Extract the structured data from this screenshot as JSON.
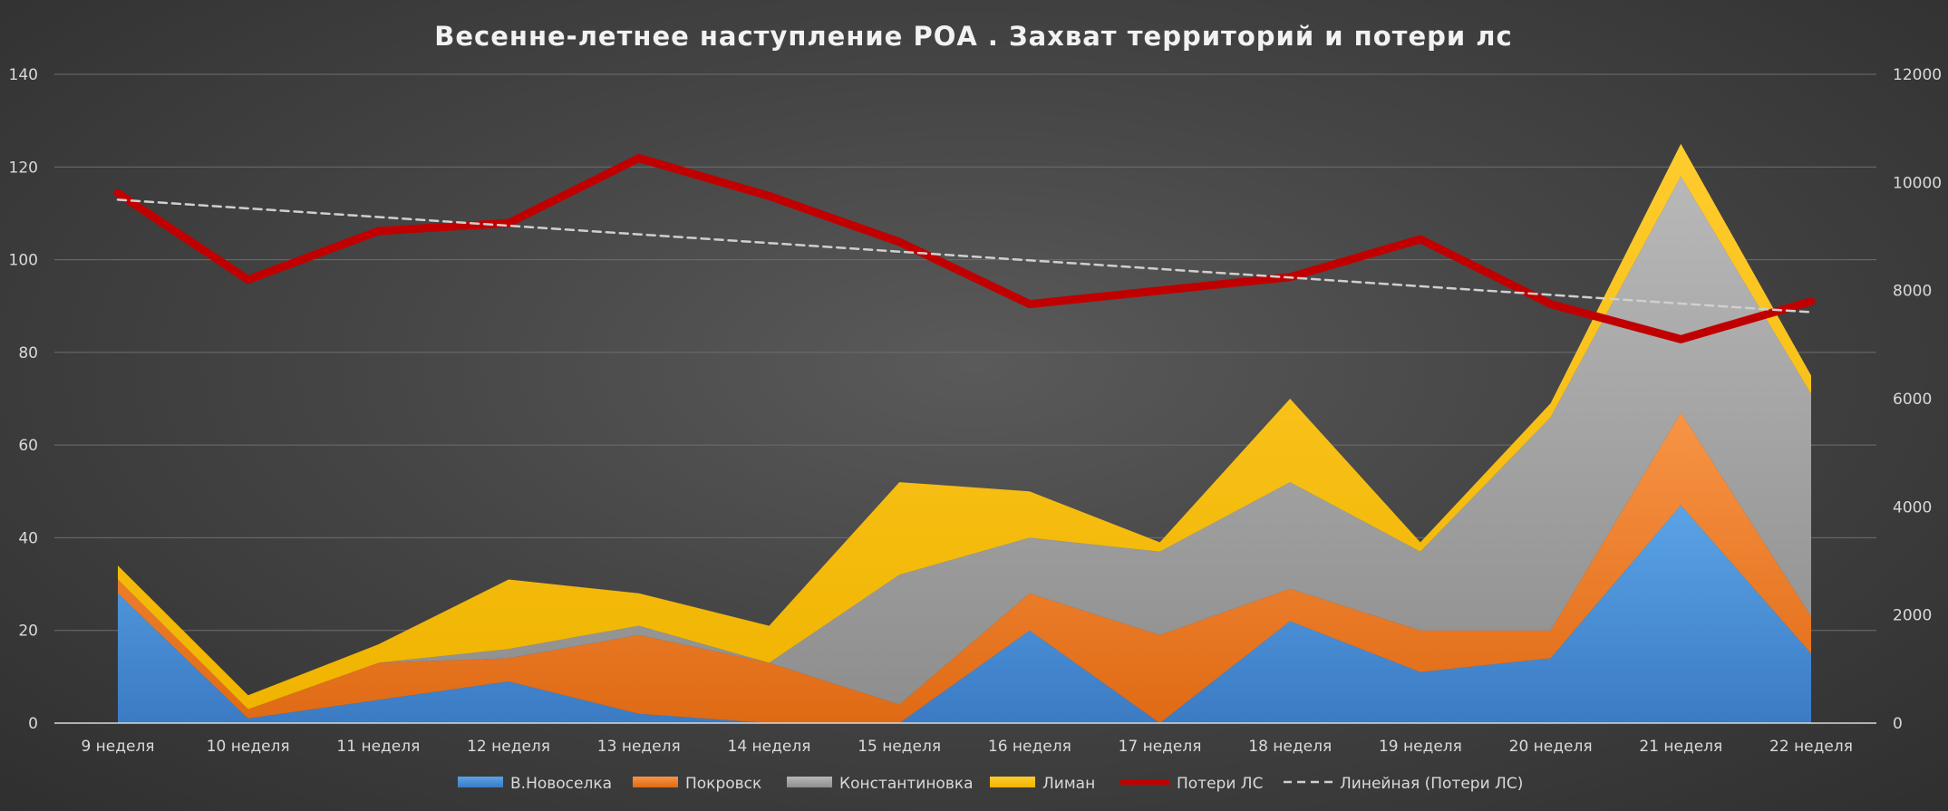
{
  "chart_data": {
    "type": "area",
    "title": "Весенне-летнее наступление РОА . Захват территорий и потери лс",
    "categories": [
      "9 неделя",
      "10 неделя",
      "11 неделя",
      "12 неделя",
      "13 неделя",
      "14 неделя",
      "15 неделя",
      "16 неделя",
      "17 неделя",
      "18 неделя",
      "19 неделя",
      "20 неделя",
      "21 неделя",
      "22 неделя"
    ],
    "area_series": [
      {
        "name": "В.Новоселка",
        "color": "#4a90d9",
        "values": [
          28,
          1,
          5,
          9,
          2,
          0,
          0,
          20,
          0,
          22,
          11,
          14,
          47,
          15
        ]
      },
      {
        "name": "Покровск",
        "color": "#f07a26",
        "values": [
          3,
          2,
          8,
          5,
          17,
          13,
          4,
          8,
          19,
          7,
          9,
          6,
          20,
          8
        ]
      },
      {
        "name": "Константиновка",
        "color": "#a6a6a6",
        "values": [
          0,
          0,
          0,
          2,
          2,
          0,
          28,
          12,
          18,
          23,
          17,
          46,
          51,
          48
        ]
      },
      {
        "name": "Лиман",
        "color": "#ffc000",
        "values": [
          3,
          3,
          4,
          15,
          7,
          8,
          20,
          10,
          2,
          18,
          2,
          3,
          7,
          4
        ]
      }
    ],
    "line_series": [
      {
        "name": "Потери ЛС",
        "color": "#c00000",
        "axis": "right",
        "values": [
          9800,
          8200,
          9100,
          9250,
          10450,
          9750,
          8900,
          7750,
          8000,
          8250,
          8950,
          7750,
          7100,
          7800
        ]
      },
      {
        "name": "Линейная (Потери ЛС)",
        "color": "#cfcfcf",
        "dashed": true,
        "axis": "right",
        "values": [
          9680,
          9520,
          9360,
          9200,
          9040,
          8880,
          8720,
          8560,
          8400,
          8240,
          8080,
          7920,
          7760,
          7600
        ]
      }
    ],
    "ylim_left": [
      0,
      140
    ],
    "yticks_left": [
      0,
      20,
      40,
      60,
      80,
      100,
      120,
      140
    ],
    "ylim_right": [
      0,
      12000
    ],
    "yticks_right": [
      0,
      2000,
      4000,
      6000,
      8000,
      10000,
      12000
    ],
    "legend_position": "bottom",
    "grid": true
  }
}
